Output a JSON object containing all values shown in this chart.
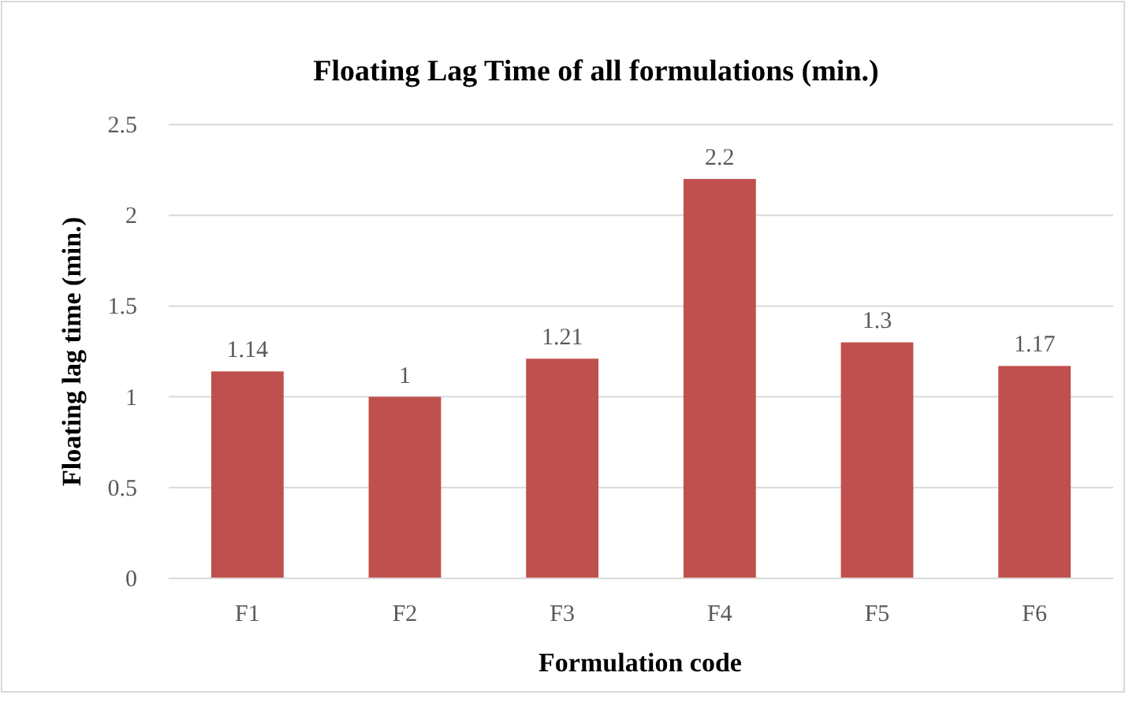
{
  "chart_data": {
    "type": "bar",
    "title": "Floating Lag Time of all formulations (min.)",
    "xlabel": "Formulation code",
    "ylabel": "Floating lag time (min.)",
    "categories": [
      "F1",
      "F2",
      "F3",
      "F4",
      "F5",
      "F6"
    ],
    "values": [
      1.14,
      1,
      1.21,
      2.2,
      1.3,
      1.17
    ],
    "color": "#c0504d",
    "ylim": [
      0,
      2.5
    ],
    "yticks": [
      0,
      0.5,
      1,
      1.5,
      2,
      2.5
    ],
    "grid": "y",
    "data_labels": true
  }
}
